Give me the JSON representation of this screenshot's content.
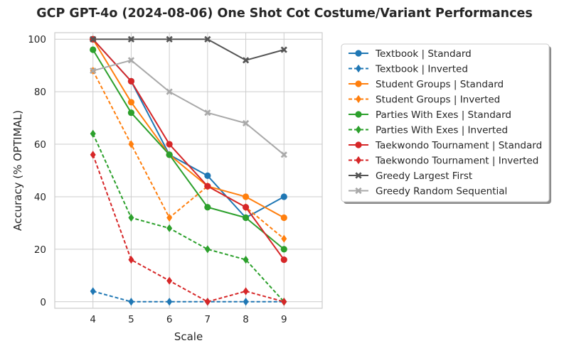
{
  "chart_data": {
    "type": "line",
    "title": "GCP GPT-4o (2024-08-06) One Shot Cot Costume/Variant Performances",
    "xlabel": "Scale",
    "ylabel": "Accuracy (% OPTIMAL)",
    "x": [
      4,
      5,
      6,
      7,
      8,
      9
    ],
    "xlim": [
      3,
      10
    ],
    "ylim": [
      -2.5,
      102.5
    ],
    "xticks": [
      "4",
      "5",
      "6",
      "7",
      "8",
      "9"
    ],
    "yticks": [
      "0",
      "20",
      "40",
      "60",
      "80",
      "100"
    ],
    "grid": true,
    "legend_position": "outside-right",
    "series": [
      {
        "name": "Textbook | Standard",
        "values": [
          100,
          84,
          56,
          48,
          32,
          40
        ],
        "color": "#1f77b4",
        "line": "solid",
        "marker": "circle"
      },
      {
        "name": "Textbook | Inverted",
        "values": [
          4,
          0,
          0,
          0,
          0,
          0
        ],
        "color": "#1f77b4",
        "line": "dashed",
        "marker": "diamond"
      },
      {
        "name": "Student Groups | Standard",
        "values": [
          100,
          76,
          56,
          44,
          40,
          32
        ],
        "color": "#ff7f0e",
        "line": "solid",
        "marker": "circle"
      },
      {
        "name": "Student Groups | Inverted",
        "values": [
          88,
          60,
          32,
          44,
          36,
          24
        ],
        "color": "#ff7f0e",
        "line": "dashed",
        "marker": "diamond"
      },
      {
        "name": "Parties With Exes | Standard",
        "values": [
          96,
          72,
          56,
          36,
          32,
          20
        ],
        "color": "#2ca02c",
        "line": "solid",
        "marker": "circle"
      },
      {
        "name": "Parties With Exes | Inverted",
        "values": [
          64,
          32,
          28,
          20,
          16,
          0
        ],
        "color": "#2ca02c",
        "line": "dashed",
        "marker": "diamond"
      },
      {
        "name": "Taekwondo Tournament | Standard",
        "values": [
          100,
          84,
          60,
          44,
          36,
          16
        ],
        "color": "#d62728",
        "line": "solid",
        "marker": "circle"
      },
      {
        "name": "Taekwondo Tournament | Inverted",
        "values": [
          56,
          16,
          8,
          0,
          4,
          0
        ],
        "color": "#d62728",
        "line": "dashed",
        "marker": "diamond"
      },
      {
        "name": "Greedy Largest First",
        "values": [
          100,
          100,
          100,
          100,
          92,
          96
        ],
        "color": "#555555",
        "line": "solid",
        "marker": "x"
      },
      {
        "name": "Greedy Random Sequential",
        "values": [
          88,
          92,
          80,
          72,
          68,
          56
        ],
        "color": "#a9a9a9",
        "line": "solid",
        "marker": "x"
      }
    ]
  }
}
